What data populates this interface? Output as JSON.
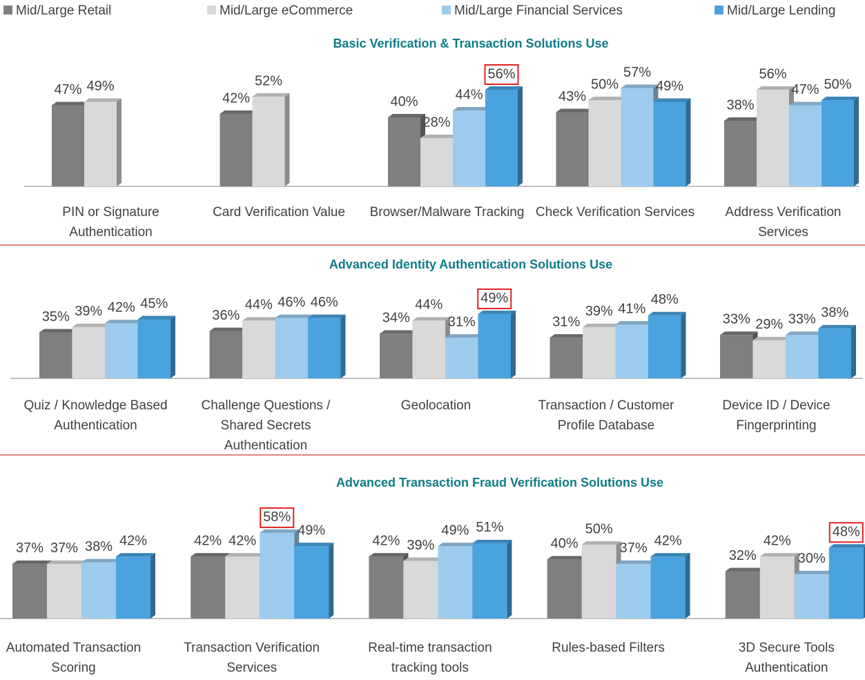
{
  "legend": [
    {
      "name": "Mid/Large Retail",
      "color": "#7f7f7f"
    },
    {
      "name": "Mid/Large eCommerce",
      "color": "#d9d9d9"
    },
    {
      "name": "Mid/Large Financial Services",
      "color": "#9dcbee"
    },
    {
      "name": "Mid/Large Lending",
      "color": "#4aa3df"
    }
  ],
  "chart_data": [
    {
      "type": "bar",
      "title": "Basic Verification & Transaction Solutions Use",
      "categories": [
        "PIN or Signature Authentication",
        "Card Verification Value",
        "Browser/Malware Tracking",
        "Check Verification Services",
        "Address Verification Services"
      ],
      "series": [
        {
          "values": [
            47,
            42,
            40,
            43,
            38
          ],
          "value_labels": [
            "47%",
            "42%",
            "40%",
            "43%",
            "38%"
          ]
        },
        {
          "values": [
            49,
            52,
            28,
            50,
            56
          ],
          "value_labels": [
            "49%",
            "52%",
            "28%",
            "50%",
            "56%"
          ]
        },
        {
          "values": [
            null,
            null,
            44,
            57,
            47
          ],
          "value_labels": [
            null,
            null,
            "44%",
            "57%",
            "47%"
          ]
        },
        {
          "values": [
            null,
            null,
            56,
            49,
            50
          ],
          "value_labels": [
            null,
            null,
            "56%",
            "49%",
            "50%"
          ]
        }
      ],
      "highlighted": [
        {
          "series": 3,
          "index": 2
        }
      ]
    },
    {
      "type": "bar",
      "title": "Advanced Identity Authentication Solutions Use",
      "categories": [
        "Quiz / Knowledge Based Authentication",
        "Challenge Questions / Shared Secrets Authentication",
        "Geolocation",
        "Transaction / Customer Profile Database",
        "Device ID / Device Fingerprinting"
      ],
      "series": [
        {
          "values": [
            35,
            36,
            34,
            31,
            33
          ],
          "value_labels": [
            "35%",
            "36%",
            "34%",
            "31%",
            "33%"
          ]
        },
        {
          "values": [
            39,
            44,
            44,
            39,
            29
          ],
          "value_labels": [
            "39%",
            "44%",
            "44%",
            "39%",
            "29%"
          ]
        },
        {
          "values": [
            42,
            46,
            31,
            41,
            33
          ],
          "value_labels": [
            "42%",
            "46%",
            "31%",
            "41%",
            "33%"
          ]
        },
        {
          "values": [
            45,
            46,
            49,
            48,
            38
          ],
          "value_labels": [
            "45%",
            "46%",
            "49%",
            "48%",
            "38%"
          ]
        }
      ],
      "highlighted": [
        {
          "series": 3,
          "index": 2
        }
      ]
    },
    {
      "type": "bar",
      "title": "Advanced Transaction Fraud Verification Solutions Use",
      "categories": [
        "Automated Transaction Scoring",
        "Transaction Verification Services",
        "Real-time transaction tracking tools",
        "Rules-based Filters",
        "3D Secure Tools Authentication"
      ],
      "series": [
        {
          "values": [
            37,
            42,
            42,
            40,
            32
          ],
          "value_labels": [
            "37%",
            "42%",
            "42%",
            "40%",
            "32%"
          ]
        },
        {
          "values": [
            37,
            42,
            39,
            50,
            42
          ],
          "value_labels": [
            "37%",
            "42%",
            "39%",
            "50%",
            "42%"
          ]
        },
        {
          "values": [
            38,
            58,
            49,
            37,
            30
          ],
          "value_labels": [
            "38%",
            "58%",
            "49%",
            "37%",
            "30%"
          ]
        },
        {
          "values": [
            42,
            49,
            51,
            42,
            48
          ],
          "value_labels": [
            "42%",
            "49%",
            "51%",
            "42%",
            "48%"
          ]
        }
      ],
      "highlighted": [
        {
          "series": 2,
          "index": 1
        },
        {
          "series": 3,
          "index": 4
        }
      ]
    }
  ]
}
